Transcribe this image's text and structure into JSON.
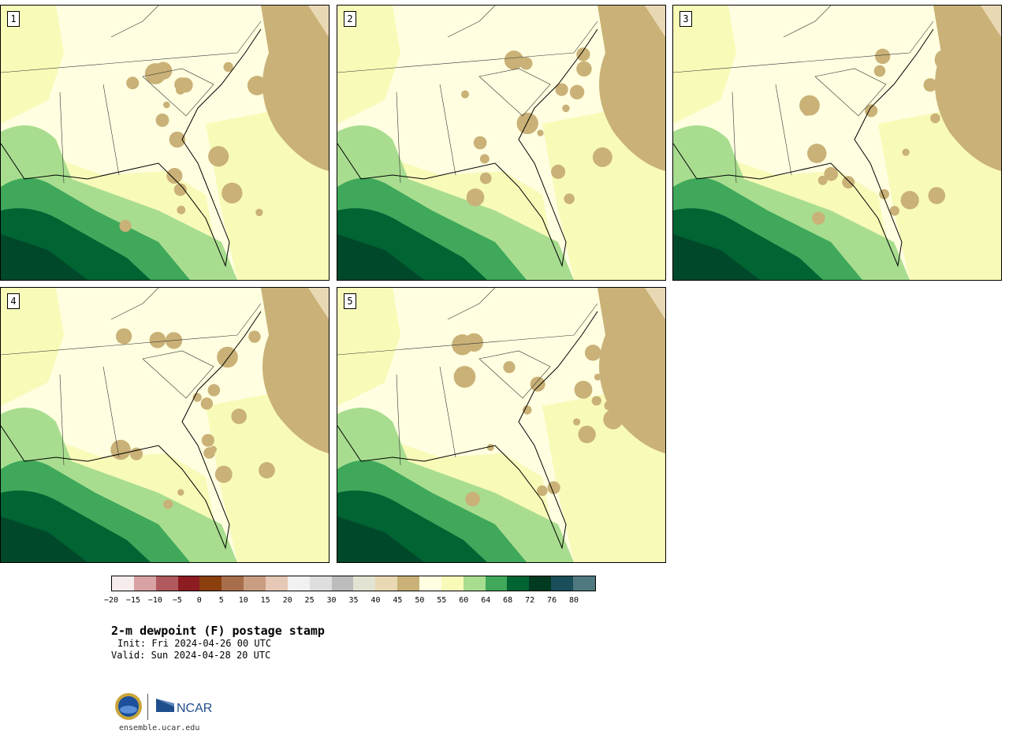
{
  "panels": [
    {
      "number": "1"
    },
    {
      "number": "2"
    },
    {
      "number": "3"
    },
    {
      "number": "4"
    },
    {
      "number": "5"
    }
  ],
  "colorbar": {
    "ticks": [
      "−20",
      "−15",
      "−10",
      "−5",
      "0",
      "5",
      "10",
      "15",
      "20",
      "25",
      "30",
      "35",
      "40",
      "45",
      "50",
      "55",
      "60",
      "64",
      "68",
      "72",
      "76",
      "80"
    ],
    "colors": [
      "#f7ecec",
      "#d8a1a4",
      "#b05a5d",
      "#8c1c22",
      "#8a3f0c",
      "#a86e4c",
      "#c99d82",
      "#e6c8b6",
      "#f1f1f1",
      "#dedede",
      "#bcbcbc",
      "#e3e3d3",
      "#e8d8b3",
      "#c9b177",
      "#fffee0",
      "#f8fab8",
      "#a8dd8f",
      "#3fa85a",
      "#006433",
      "#003a20",
      "#1a4e5a",
      "#50787f"
    ]
  },
  "map_colors": {
    "ocean_deep": "#00482a",
    "ocean_mid": "#006433",
    "ocean_shallow": "#3fa85a",
    "humid": "#a8dd8f",
    "moist": "#f8fab8",
    "land": "#fffee0",
    "dry": "#c9b177",
    "very_dry": "#e8d8b3"
  },
  "title": "2-m dewpoint (F) postage stamp",
  "init": "Init: Fri 2024-04-26 00 UTC",
  "valid": "Valid: Sun 2024-04-28 20 UTC",
  "logos": {
    "nsf": "NSF",
    "ncar": "NCAR"
  },
  "website": "ensemble.ucar.edu"
}
